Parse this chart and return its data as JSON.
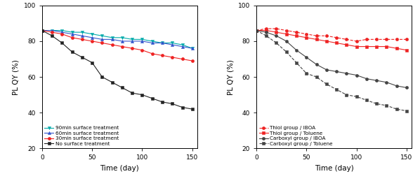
{
  "left": {
    "xlabel": "Time (day)",
    "ylabel": "PL QY (%)",
    "xlim": [
      0,
      155
    ],
    "ylim": [
      20,
      100
    ],
    "yticks": [
      20,
      40,
      60,
      80,
      100
    ],
    "xticks": [
      0,
      50,
      100,
      150
    ],
    "series": [
      {
        "label": "90min surface treatment",
        "hex": "#00AAAA",
        "marker": "v",
        "linestyle": "-",
        "x": [
          0,
          10,
          20,
          30,
          40,
          50,
          60,
          70,
          80,
          90,
          100,
          110,
          120,
          130,
          140,
          150
        ],
        "y": [
          86,
          86,
          86,
          85,
          85,
          84,
          83,
          82,
          82,
          81,
          81,
          80,
          79,
          79,
          78,
          76
        ]
      },
      {
        "label": "60min surface treatment",
        "hex": "#3355CC",
        "marker": "^",
        "linestyle": "-",
        "x": [
          0,
          10,
          20,
          30,
          40,
          50,
          60,
          70,
          80,
          90,
          100,
          110,
          120,
          130,
          140,
          150
        ],
        "y": [
          86,
          86,
          85,
          84,
          83,
          82,
          81,
          81,
          80,
          80,
          80,
          79,
          79,
          78,
          77,
          76
        ]
      },
      {
        "label": "30min surface treatment",
        "hex": "#EE2222",
        "marker": "o",
        "linestyle": "-",
        "x": [
          0,
          10,
          20,
          30,
          40,
          50,
          60,
          70,
          80,
          90,
          100,
          110,
          120,
          130,
          140,
          150
        ],
        "y": [
          86,
          85,
          84,
          82,
          81,
          80,
          79,
          78,
          77,
          76,
          75,
          73,
          72,
          71,
          70,
          69
        ]
      },
      {
        "label": "No surface treatment",
        "hex": "#222222",
        "marker": "s",
        "linestyle": "-",
        "x": [
          0,
          10,
          20,
          30,
          40,
          50,
          60,
          70,
          80,
          90,
          100,
          110,
          120,
          130,
          140,
          150
        ],
        "y": [
          86,
          83,
          79,
          74,
          71,
          68,
          60,
          57,
          54,
          51,
          50,
          48,
          46,
          45,
          43,
          42
        ]
      }
    ]
  },
  "right": {
    "xlabel": "Time (day)",
    "ylabel": "PL QY (%)",
    "xlim": [
      0,
      155
    ],
    "ylim": [
      20,
      100
    ],
    "yticks": [
      20,
      40,
      60,
      80,
      100
    ],
    "xticks": [
      0,
      50,
      100,
      150
    ],
    "series": [
      {
        "label": "Thiol group / IBOA",
        "hex": "#EE2222",
        "marker": "o",
        "linestyle": "--",
        "x": [
          0,
          10,
          20,
          30,
          40,
          50,
          60,
          70,
          80,
          90,
          100,
          110,
          120,
          130,
          140,
          150
        ],
        "y": [
          86,
          87,
          87,
          86,
          85,
          84,
          83,
          83,
          82,
          81,
          80,
          81,
          81,
          81,
          81,
          81
        ]
      },
      {
        "label": "Thiol group / Toluene",
        "hex": "#EE2222",
        "marker": "s",
        "linestyle": "-",
        "x": [
          0,
          10,
          20,
          30,
          40,
          50,
          60,
          70,
          80,
          90,
          100,
          110,
          120,
          130,
          140,
          150
        ],
        "y": [
          86,
          86,
          85,
          84,
          83,
          82,
          81,
          80,
          79,
          78,
          77,
          77,
          77,
          77,
          76,
          75
        ]
      },
      {
        "label": "Carboxyl group / IBOA",
        "hex": "#444444",
        "marker": "o",
        "linestyle": "-",
        "x": [
          0,
          10,
          20,
          30,
          40,
          50,
          60,
          70,
          80,
          90,
          100,
          110,
          120,
          130,
          140,
          150
        ],
        "y": [
          86,
          85,
          83,
          80,
          75,
          71,
          67,
          64,
          63,
          62,
          61,
          59,
          58,
          57,
          55,
          54
        ]
      },
      {
        "label": "Carboxyl group / Toluene",
        "hex": "#444444",
        "marker": "s",
        "linestyle": "--",
        "x": [
          0,
          10,
          20,
          30,
          40,
          50,
          60,
          70,
          80,
          90,
          100,
          110,
          120,
          130,
          140,
          150
        ],
        "y": [
          86,
          83,
          79,
          74,
          68,
          62,
          60,
          56,
          53,
          50,
          49,
          47,
          45,
          44,
          42,
          41
        ]
      }
    ]
  },
  "legend_fontsize": 5.2,
  "axis_fontsize": 7.5,
  "tick_fontsize": 6.5,
  "marker_size": 3.0,
  "linewidth": 0.8
}
